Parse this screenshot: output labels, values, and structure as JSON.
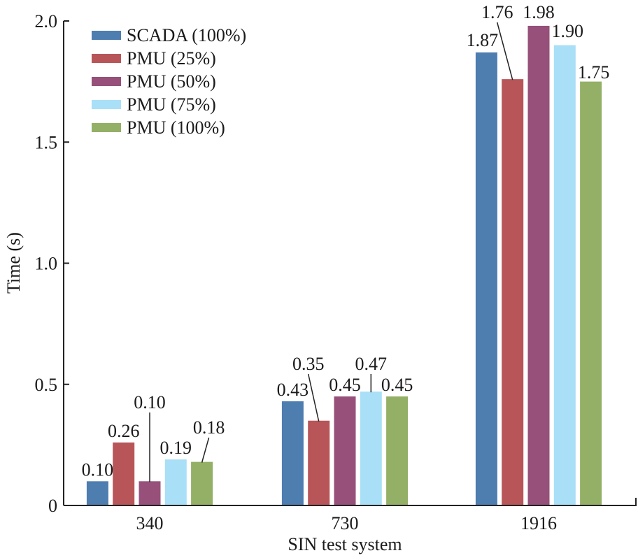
{
  "chart_data": {
    "type": "bar",
    "title": "",
    "xlabel": "SIN test system",
    "ylabel": "Time (s)",
    "ylim": [
      0,
      2.0
    ],
    "yticks": [
      0,
      0.5,
      1.0,
      1.5,
      2.0
    ],
    "ytick_labels": [
      "0",
      "0.5",
      "1.0",
      "1.5",
      "2.0"
    ],
    "categories": [
      "340",
      "730",
      "1916"
    ],
    "grid": false,
    "legend_position": "top-left",
    "series": [
      {
        "name": "SCADA (100%)",
        "color": "#4e7db0",
        "values": [
          0.1,
          0.43,
          1.87
        ],
        "labels": [
          "0.10",
          "0.43",
          "1.87"
        ]
      },
      {
        "name": "PMU (25%)",
        "color": "#b85558",
        "values": [
          0.26,
          0.35,
          1.76
        ],
        "labels": [
          "0.26",
          "0.35",
          "1.76"
        ]
      },
      {
        "name": "PMU (50%)",
        "color": "#965079",
        "values": [
          0.1,
          0.45,
          1.98
        ],
        "labels": [
          "0.10",
          "0.45",
          "1.98"
        ]
      },
      {
        "name": "PMU (75%)",
        "color": "#a9dff7",
        "values": [
          0.19,
          0.47,
          1.9
        ],
        "labels": [
          "0.19",
          "0.47",
          "1.90"
        ]
      },
      {
        "name": "PMU (100%)",
        "color": "#93b066",
        "values": [
          0.18,
          0.45,
          1.75
        ],
        "labels": [
          "0.18",
          "0.45",
          "1.75"
        ]
      }
    ]
  }
}
